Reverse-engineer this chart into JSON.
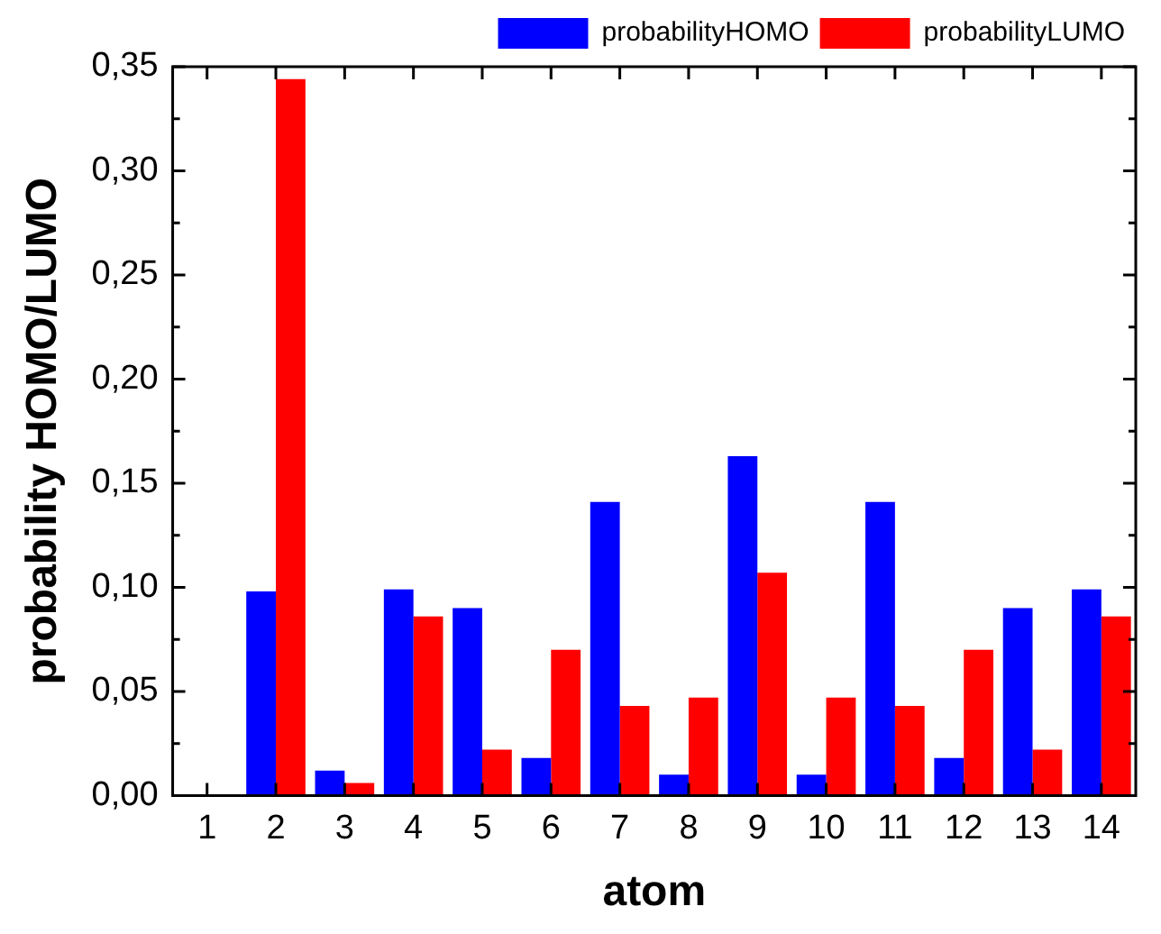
{
  "chart_data": {
    "type": "bar",
    "xlabel": "atom",
    "ylabel": "probability HOMO/LUMO",
    "categories": [
      "1",
      "2",
      "3",
      "4",
      "5",
      "6",
      "7",
      "8",
      "9",
      "10",
      "11",
      "12",
      "13",
      "14"
    ],
    "series": [
      {
        "name": "probabilityHOMO",
        "color": "#0000ff",
        "values": [
          0,
          0.098,
          0.012,
          0.099,
          0.09,
          0.018,
          0.141,
          0.01,
          0.163,
          0.01,
          0.141,
          0.018,
          0.09,
          0.099
        ]
      },
      {
        "name": "probabilityLUMO",
        "color": "#ff0000",
        "values": [
          0,
          0.344,
          0.006,
          0.086,
          0.022,
          0.07,
          0.043,
          0.047,
          0.107,
          0.047,
          0.043,
          0.07,
          0.022,
          0.086
        ]
      }
    ],
    "ylim": [
      0,
      0.35
    ],
    "yticks": [
      {
        "value": 0,
        "label": "0,00"
      },
      {
        "value": 0.05,
        "label": "0,05"
      },
      {
        "value": 0.1,
        "label": "0,10"
      },
      {
        "value": 0.15,
        "label": "0,15"
      },
      {
        "value": 0.2,
        "label": "0,20"
      },
      {
        "value": 0.25,
        "label": "0,25"
      },
      {
        "value": 0.3,
        "label": "0,30"
      },
      {
        "value": 0.35,
        "label": "0,35"
      }
    ],
    "grid": false,
    "legend": "top right"
  }
}
